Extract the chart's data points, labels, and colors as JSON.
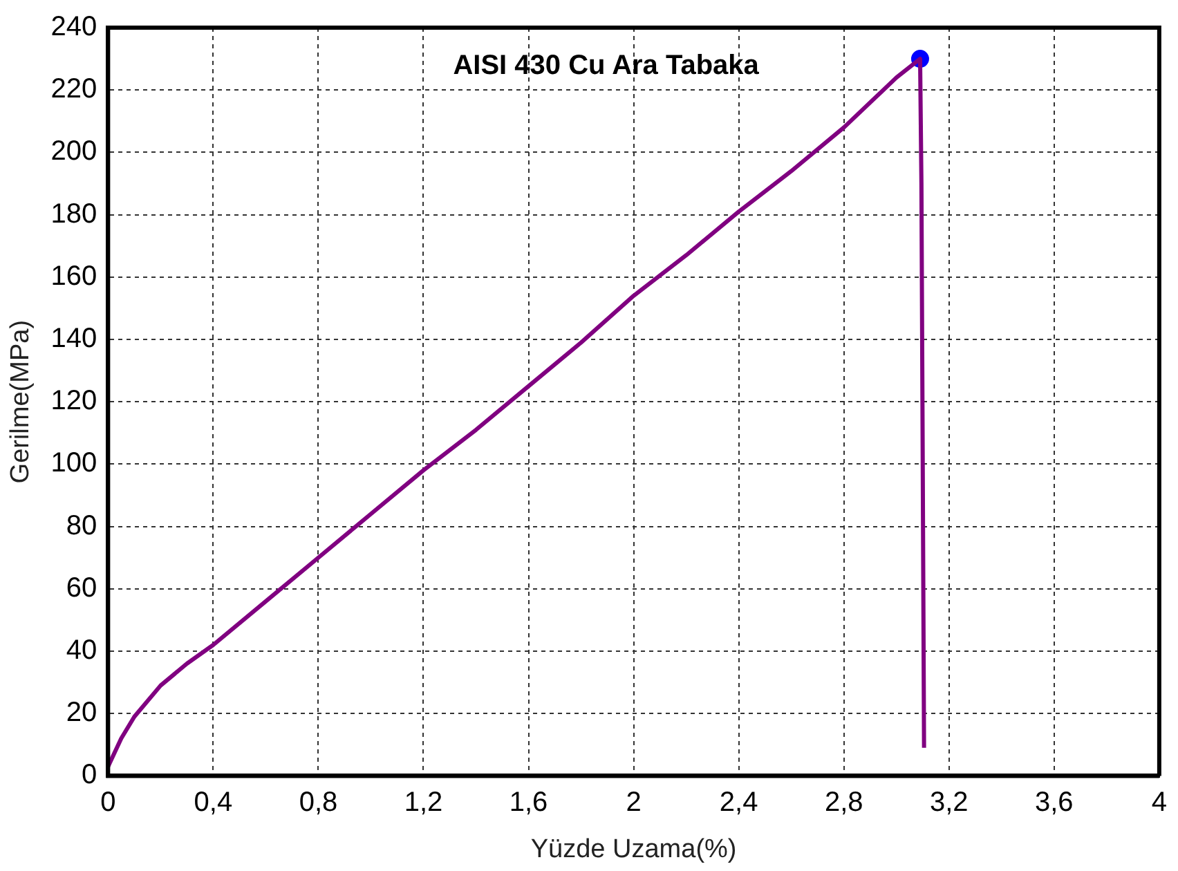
{
  "chart_data": {
    "type": "line",
    "title": "AISI 430 Cu Ara Tabaka",
    "xlabel": "Yüzde Uzama(%)",
    "ylabel": "Gerilme(MPa)",
    "series": [
      {
        "color": "#800080",
        "x": [
          0,
          0.05,
          0.1,
          0.2,
          0.3,
          0.4,
          0.6,
          0.8,
          1.0,
          1.2,
          1.4,
          1.6,
          1.8,
          2.0,
          2.2,
          2.4,
          2.6,
          2.8,
          3.0,
          3.09,
          3.095,
          3.1,
          3.105
        ],
        "values": [
          3,
          12,
          19,
          29,
          36,
          42,
          56,
          70,
          84,
          98,
          111,
          125,
          139,
          154,
          167,
          181,
          194,
          208,
          224,
          230,
          190,
          100,
          9
        ]
      },
      {
        "type": "scatter",
        "marker": "circle",
        "color": "#0000ff",
        "x": [
          3.09
        ],
        "values": [
          230
        ]
      }
    ],
    "xlim": [
      0,
      4
    ],
    "xticks": [
      {
        "value": 0,
        "label": "0"
      },
      {
        "value": 0.4,
        "label": "0,4"
      },
      {
        "value": 0.8,
        "label": "0,8"
      },
      {
        "value": 1.2,
        "label": "1,2"
      },
      {
        "value": 1.6,
        "label": "1,6"
      },
      {
        "value": 2,
        "label": "2"
      },
      {
        "value": 2.4,
        "label": "2,4"
      },
      {
        "value": 2.8,
        "label": "2,8"
      },
      {
        "value": 3.2,
        "label": "3,2"
      },
      {
        "value": 3.6,
        "label": "3,6"
      },
      {
        "value": 4,
        "label": "4"
      }
    ],
    "ylim": [
      0,
      240
    ],
    "yticks": [
      0,
      20,
      40,
      60,
      80,
      100,
      120,
      140,
      160,
      180,
      200,
      220,
      240
    ],
    "grid": true,
    "legend": false,
    "marker": "none",
    "line_style": "solid"
  }
}
